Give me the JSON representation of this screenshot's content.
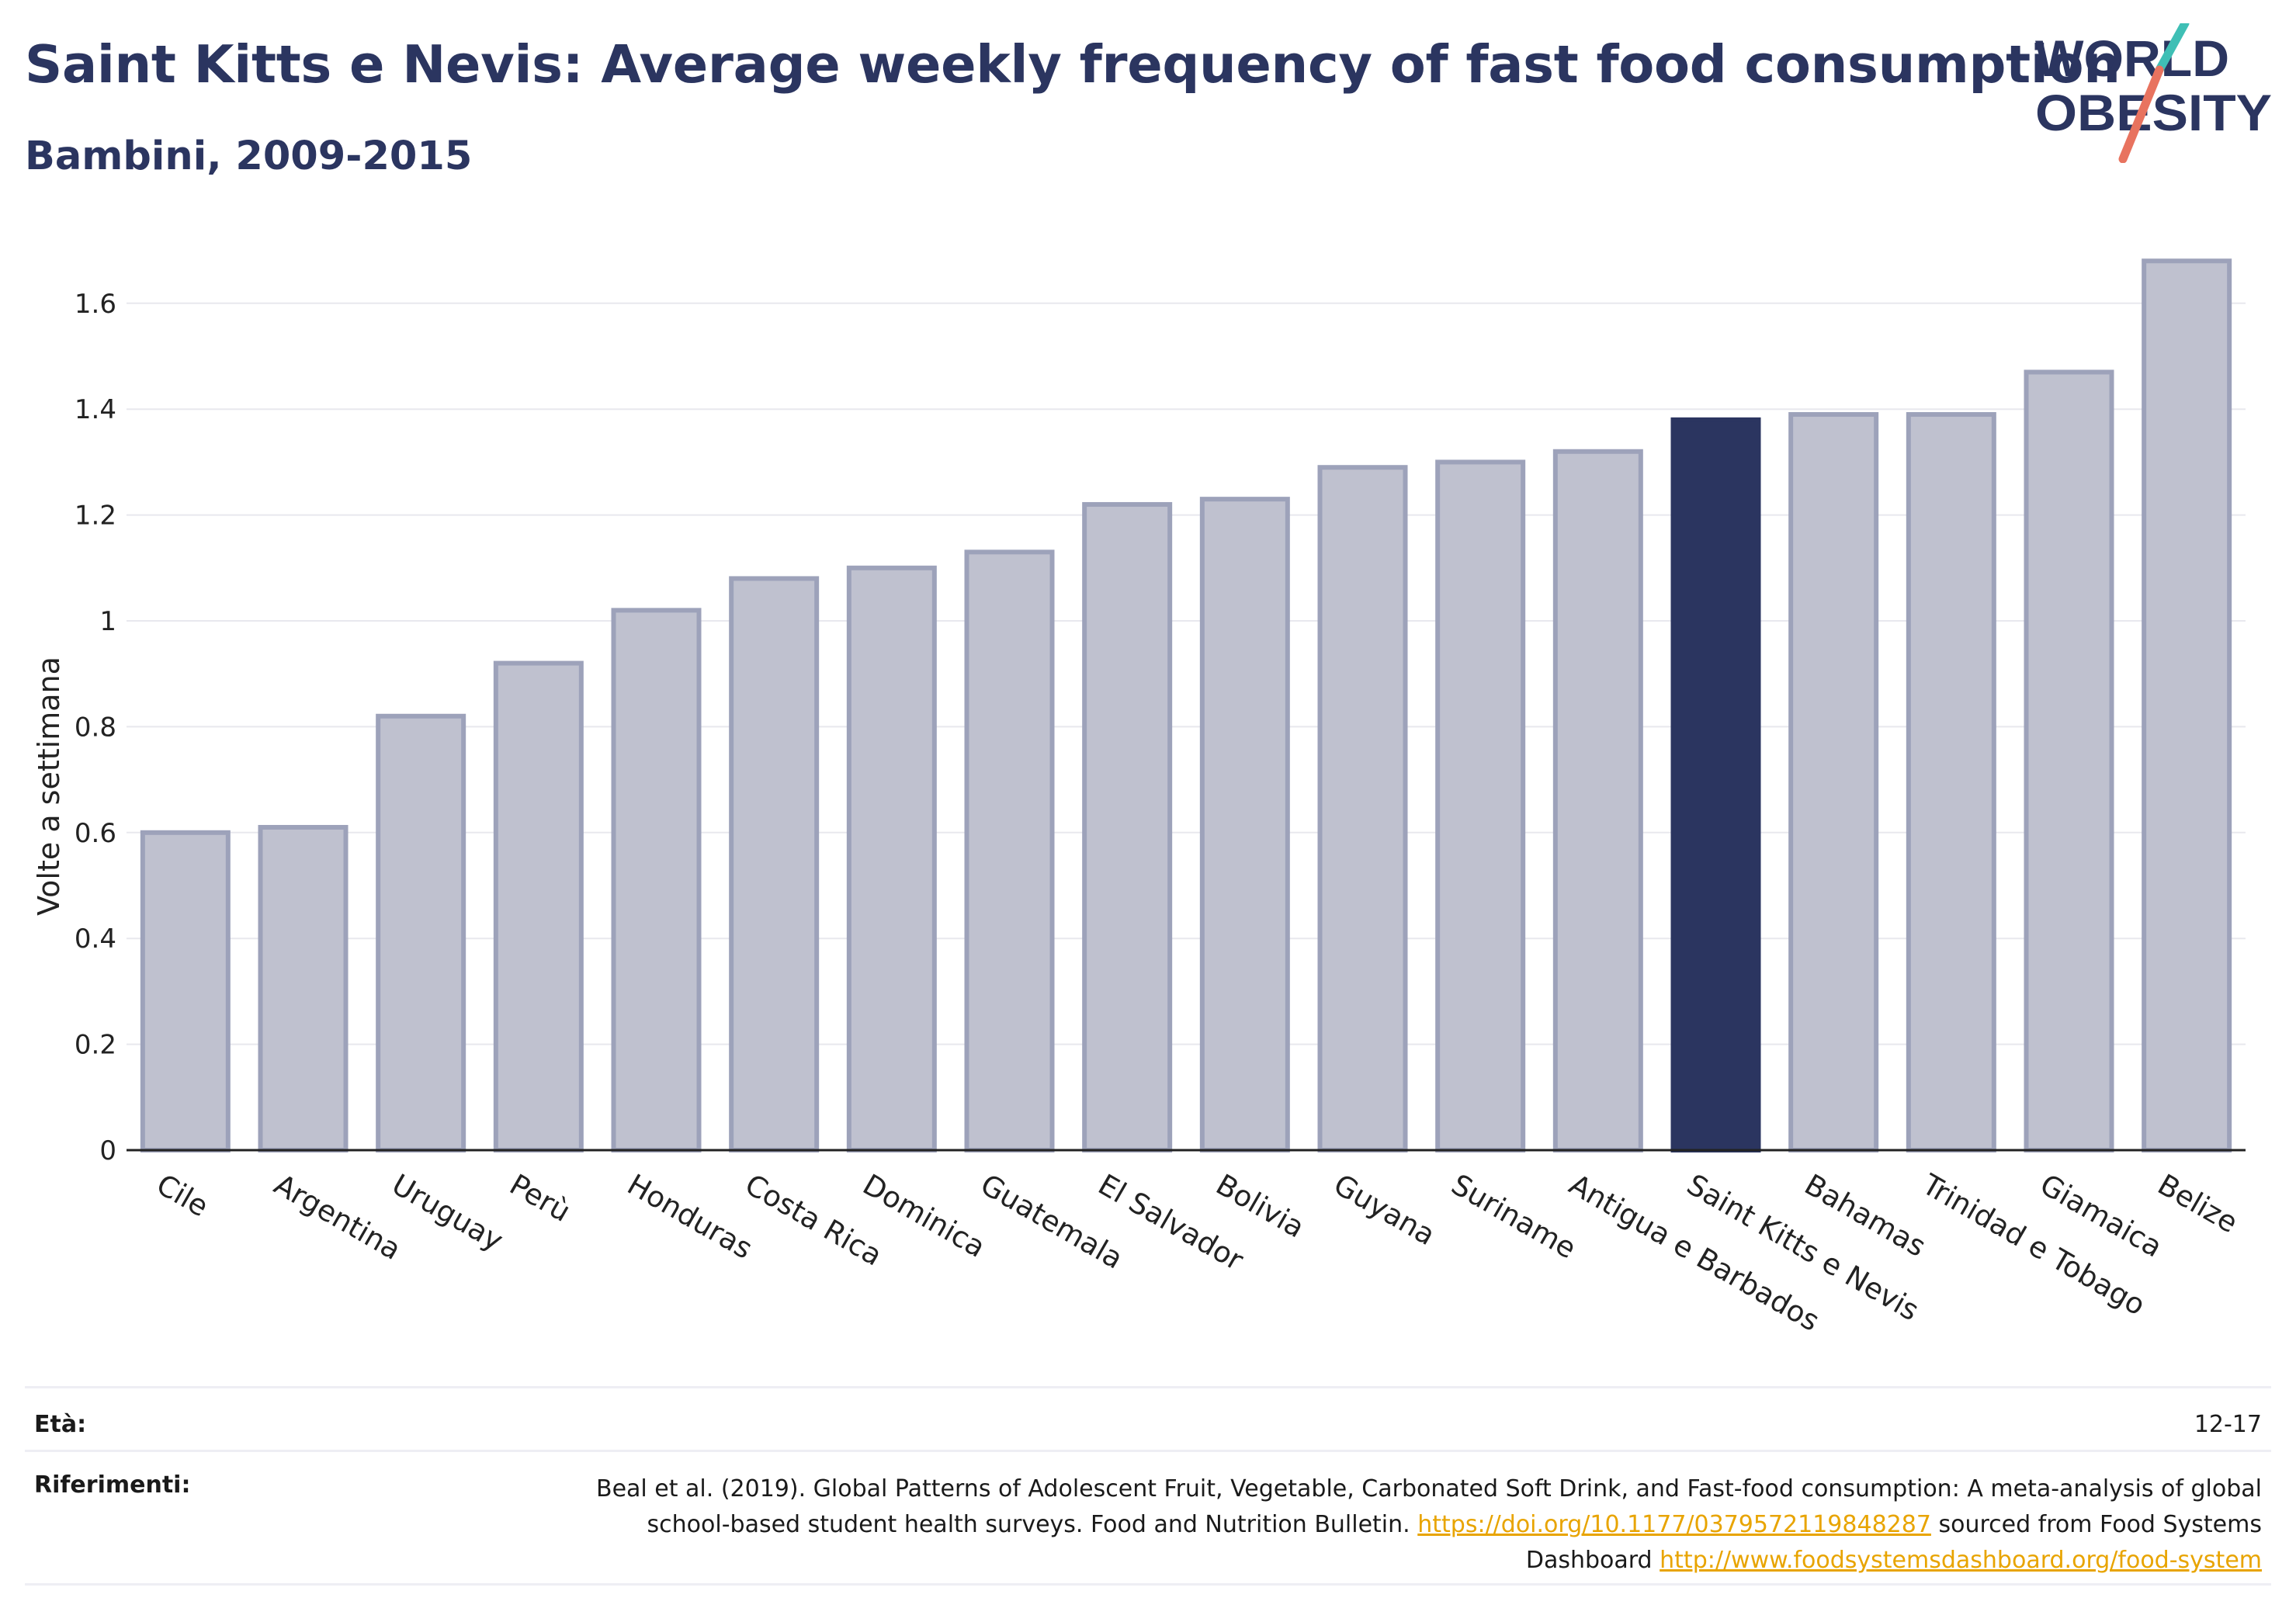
{
  "header": {
    "title": "Saint Kitts e Nevis: Average weekly frequency of fast food consumption",
    "subtitle": "Bambini, 2009-2015"
  },
  "logo": {
    "line1": "WORLD",
    "line2": "OBESITY"
  },
  "colors": {
    "highlight": "#2b3560",
    "bar": "#bfc1cf",
    "bar_stroke": "#9da2ba",
    "accent_teal": "#3fbfb5",
    "accent_coral": "#e8735f",
    "link": "#e8a400"
  },
  "chart_data": {
    "type": "bar",
    "title": "Saint Kitts e Nevis: Average weekly frequency of fast food consumption",
    "subtitle": "Bambini, 2009-2015",
    "xlabel": "",
    "ylabel": "Volte a settimana",
    "ylim": [
      0,
      1.7
    ],
    "yticks": [
      0,
      0.2,
      0.4,
      0.6,
      0.8,
      1,
      1.2,
      1.4,
      1.6
    ],
    "ytick_labels": [
      "0",
      "0.2",
      "0.4",
      "0.6",
      "0.8",
      "1",
      "1.2",
      "1.4",
      "1.6"
    ],
    "grid": true,
    "categories": [
      "Cile",
      "Argentina",
      "Uruguay",
      "Perù",
      "Honduras",
      "Costa Rica",
      "Dominica",
      "Guatemala",
      "El Salvador",
      "Bolivia",
      "Guyana",
      "Suriname",
      "Antigua e Barbados",
      "Saint Kitts e Nevis",
      "Bahamas",
      "Trinidad e Tobago",
      "Giamaica",
      "Belize"
    ],
    "values": [
      0.6,
      0.61,
      0.82,
      0.92,
      1.02,
      1.08,
      1.1,
      1.13,
      1.22,
      1.23,
      1.29,
      1.3,
      1.32,
      1.38,
      1.39,
      1.39,
      1.47,
      1.68
    ],
    "highlight": "Saint Kitts e Nevis"
  },
  "footer": {
    "age_label": "Età:",
    "age_value": "12-17",
    "ref_label": "Riferimenti:",
    "ref_text_1": "Beal et al. (2019). Global Patterns of Adolescent Fruit, Vegetable, Carbonated Soft Drink, and Fast-food consumption: A meta-analysis of global school-based student health surveys. Food and Nutrition Bulletin.",
    "ref_link_1": "https://doi.org/10.1177/0379572119848287",
    "ref_text_2": "sourced from Food Systems Dashboard",
    "ref_link_2": "http://www.foodsystemsdashboard.org/food-system"
  }
}
